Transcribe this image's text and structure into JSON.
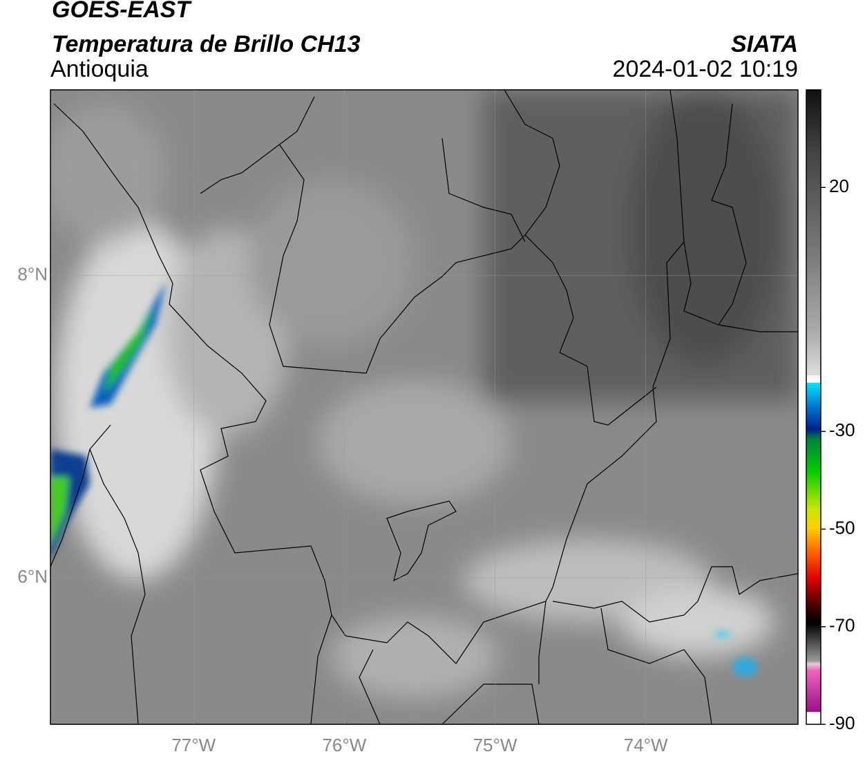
{
  "map": {
    "title": "GOES-EAST",
    "subtitle": "Temperatura de Brillo CH13",
    "region": "Antioquia",
    "source": "SIATA",
    "datetime": "2024-01-02 10:19",
    "xlim": [
      -77.95,
      -72.99
    ],
    "ylim": [
      5.03,
      9.23
    ],
    "xticks": [
      {
        "value": -77,
        "label": "77°W"
      },
      {
        "value": -76,
        "label": "76°W"
      },
      {
        "value": -75,
        "label": "75°W"
      },
      {
        "value": -74,
        "label": "74°W"
      }
    ],
    "yticks": [
      {
        "value": 8,
        "label": "8°N"
      },
      {
        "value": 6,
        "label": "6°N"
      }
    ],
    "grid": true,
    "colorbar": {
      "clim": [
        -90,
        40
      ],
      "ticks": [
        20,
        -30,
        -50,
        -70,
        -90
      ]
    }
  }
}
